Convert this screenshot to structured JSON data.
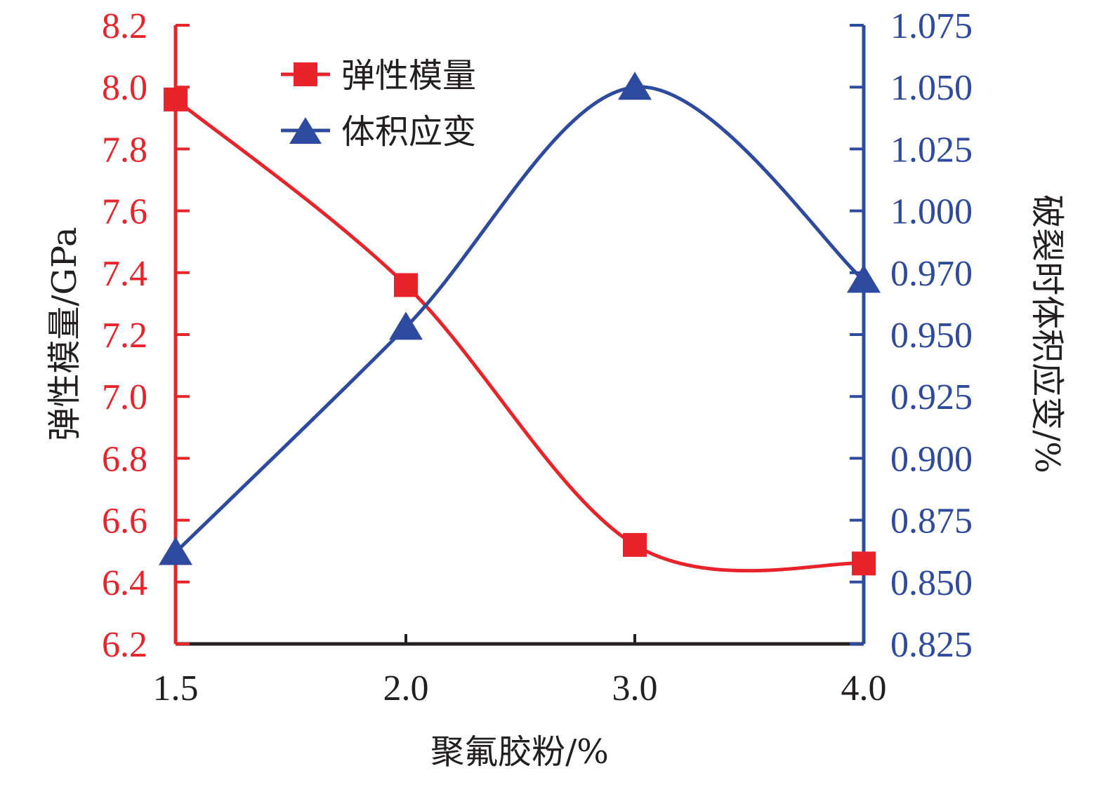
{
  "chart_data": {
    "type": "line",
    "x": [
      "1.5",
      "2.0",
      "3.0",
      "4.0"
    ],
    "xlabel": "聚氟胶粉/%",
    "series": [
      {
        "name": "弹性模量",
        "axis": "left",
        "marker": "square",
        "color": "#e8232a",
        "values": [
          7.96,
          7.36,
          6.52,
          6.46
        ]
      },
      {
        "name": "体积应变",
        "axis": "right",
        "marker": "triangle",
        "color": "#2e4a9e",
        "values": [
          0.862,
          0.953,
          1.05,
          0.972
        ]
      }
    ],
    "y_left": {
      "label": "弹性模量/GPa",
      "range": [
        6.2,
        8.2
      ],
      "ticks": [
        "6.2",
        "6.4",
        "6.6",
        "6.8",
        "7.0",
        "7.2",
        "7.4",
        "7.6",
        "7.8",
        "8.0",
        "8.2"
      ],
      "color": "#e8232a"
    },
    "y_right": {
      "label": "破裂时体积应变/%",
      "range": [
        0.825,
        1.075
      ],
      "ticks": [
        "0.825",
        "0.850",
        "0.875",
        "0.900",
        "0.925",
        "0.950",
        "0.970",
        "1.000",
        "1.025",
        "1.050",
        "1.075"
      ],
      "color": "#2e4a9e"
    },
    "legend_position": "top-left",
    "grid": false
  }
}
